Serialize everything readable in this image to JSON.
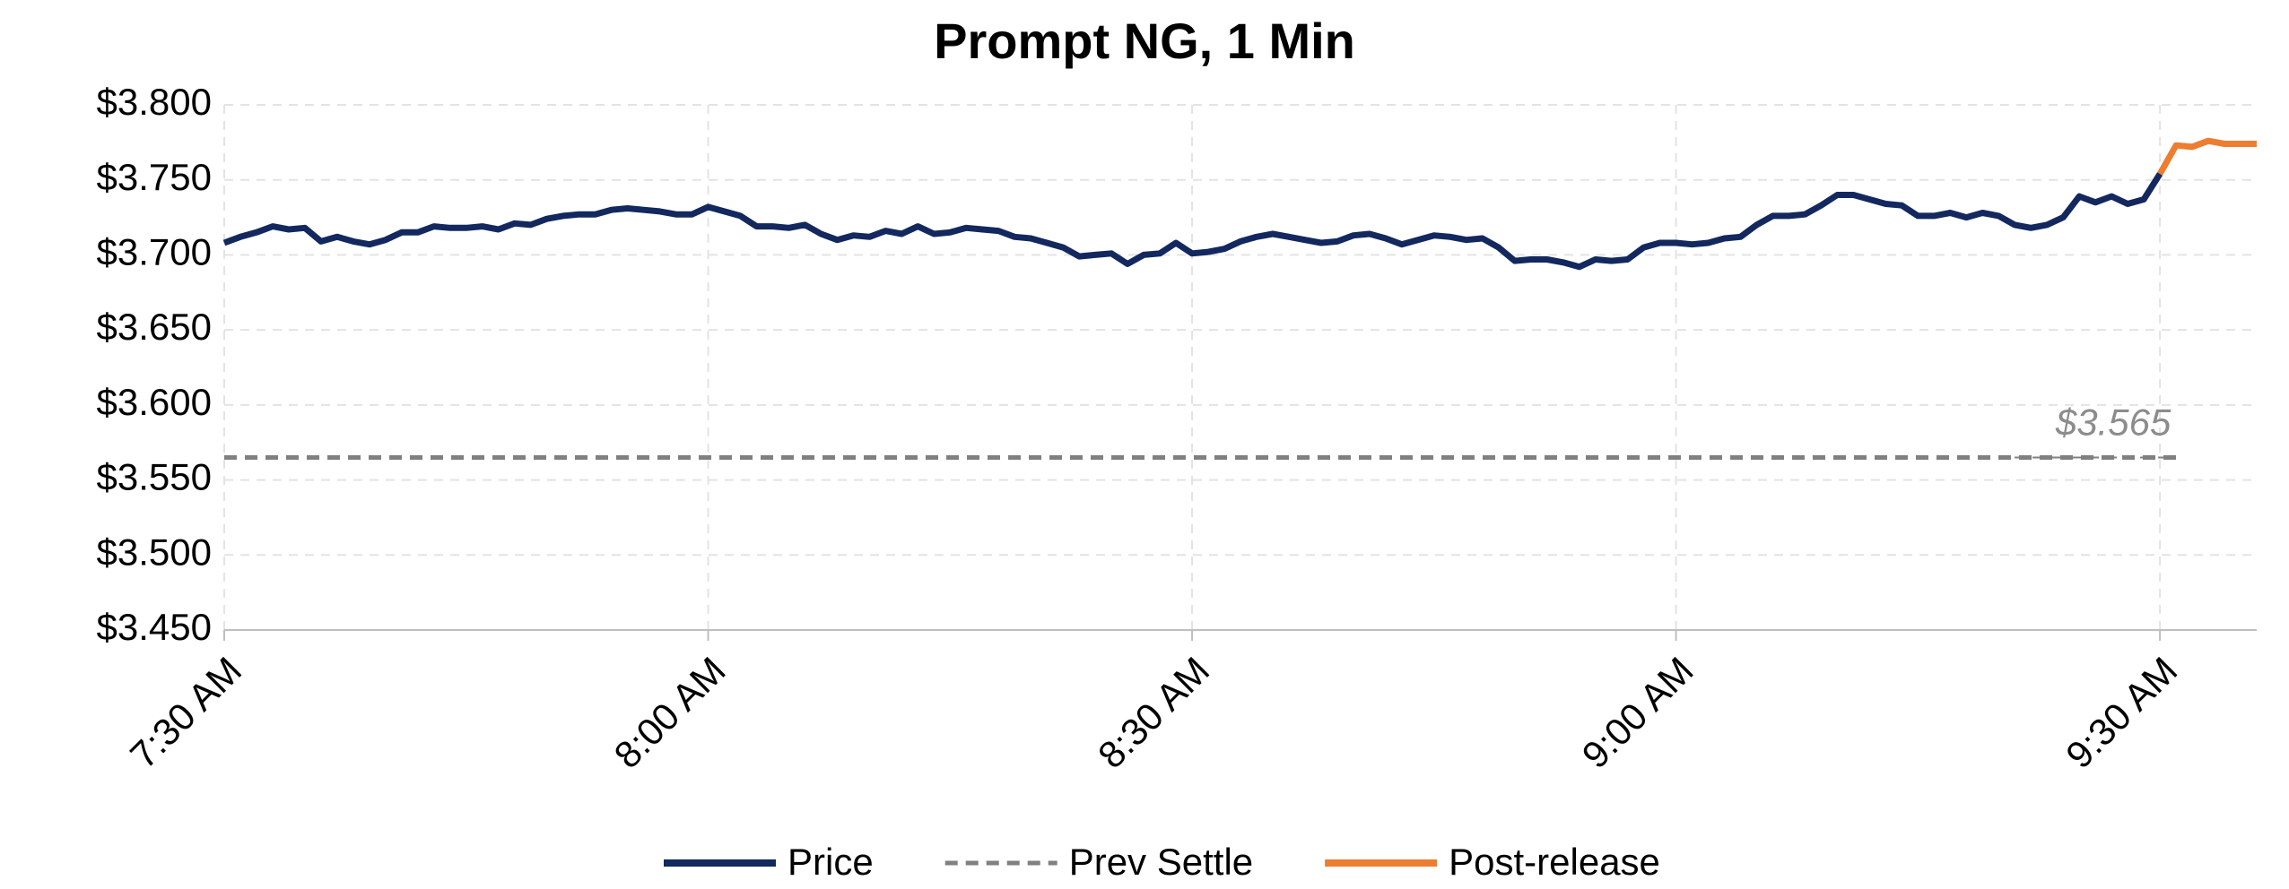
{
  "chart_data": {
    "type": "line",
    "title": "Prompt NG, 1 Min",
    "xlim": [
      0,
      126
    ],
    "xticks": [
      {
        "value": 0,
        "label": "7:30 AM"
      },
      {
        "value": 30,
        "label": "8:00 AM"
      },
      {
        "value": 60,
        "label": "8:30 AM"
      },
      {
        "value": 90,
        "label": "9:00 AM"
      },
      {
        "value": 120,
        "label": "9:30 AM"
      }
    ],
    "ylim": [
      3.45,
      3.8
    ],
    "yticks": [
      {
        "value": 3.45,
        "label": "$3.450"
      },
      {
        "value": 3.5,
        "label": "$3.500"
      },
      {
        "value": 3.55,
        "label": "$3.550"
      },
      {
        "value": 3.6,
        "label": "$3.600"
      },
      {
        "value": 3.65,
        "label": "$3.650"
      },
      {
        "value": 3.7,
        "label": "$3.700"
      },
      {
        "value": 3.75,
        "label": "$3.750"
      },
      {
        "value": 3.8,
        "label": "$3.800"
      }
    ],
    "grid": true,
    "legend": "bottom",
    "series": [
      {
        "name": "Price",
        "color": "#13285e",
        "dash": false,
        "x": [
          0,
          1,
          2,
          3,
          4,
          5,
          6,
          7,
          8,
          9,
          10,
          11,
          12,
          13,
          14,
          15,
          16,
          17,
          18,
          19,
          20,
          21,
          22,
          23,
          24,
          25,
          26,
          27,
          28,
          29,
          30,
          31,
          32,
          33,
          34,
          35,
          36,
          37,
          38,
          39,
          40,
          41,
          42,
          43,
          44,
          45,
          46,
          47,
          48,
          49,
          50,
          51,
          52,
          53,
          54,
          55,
          56,
          57,
          58,
          59,
          60,
          61,
          62,
          63,
          64,
          65,
          66,
          67,
          68,
          69,
          70,
          71,
          72,
          73,
          74,
          75,
          76,
          77,
          78,
          79,
          80,
          81,
          82,
          83,
          84,
          85,
          86,
          87,
          88,
          89,
          90,
          91,
          92,
          93,
          94,
          95,
          96,
          97,
          98,
          99,
          100,
          101,
          102,
          103,
          104,
          105,
          106,
          107,
          108,
          109,
          110,
          111,
          112,
          113,
          114,
          115,
          116,
          117,
          118,
          119,
          120
        ],
        "values": [
          3.708,
          3.712,
          3.715,
          3.719,
          3.717,
          3.718,
          3.709,
          3.712,
          3.709,
          3.707,
          3.71,
          3.715,
          3.715,
          3.719,
          3.718,
          3.718,
          3.719,
          3.717,
          3.721,
          3.72,
          3.724,
          3.726,
          3.727,
          3.727,
          3.73,
          3.731,
          3.73,
          3.729,
          3.727,
          3.727,
          3.732,
          3.729,
          3.726,
          3.719,
          3.719,
          3.718,
          3.72,
          3.714,
          3.71,
          3.713,
          3.712,
          3.716,
          3.714,
          3.719,
          3.714,
          3.715,
          3.718,
          3.717,
          3.716,
          3.712,
          3.711,
          3.708,
          3.705,
          3.699,
          3.7,
          3.701,
          3.694,
          3.7,
          3.701,
          3.708,
          3.701,
          3.702,
          3.704,
          3.709,
          3.712,
          3.714,
          3.712,
          3.71,
          3.708,
          3.709,
          3.713,
          3.714,
          3.711,
          3.707,
          3.71,
          3.713,
          3.712,
          3.71,
          3.711,
          3.705,
          3.696,
          3.697,
          3.697,
          3.695,
          3.692,
          3.697,
          3.696,
          3.697,
          3.705,
          3.708,
          3.708,
          3.707,
          3.708,
          3.711,
          3.712,
          3.72,
          3.726,
          3.726,
          3.727,
          3.733,
          3.74,
          3.74,
          3.737,
          3.734,
          3.733,
          3.726,
          3.726,
          3.728,
          3.725,
          3.728,
          3.726,
          3.72,
          3.718,
          3.72,
          3.725,
          3.739,
          3.735,
          3.739,
          3.734,
          3.737,
          3.754
        ]
      },
      {
        "name": "Prev Settle",
        "color": "#808080",
        "dash": true,
        "x": [
          0,
          121
        ],
        "values": [
          3.565,
          3.565
        ]
      },
      {
        "name": "Post-release",
        "color": "#ed7d31",
        "dash": false,
        "x": [
          120,
          121,
          122,
          123,
          124,
          125,
          126
        ],
        "values": [
          3.754,
          3.773,
          3.772,
          3.776,
          3.774,
          3.774,
          3.774
        ]
      }
    ],
    "annotations": [
      {
        "text": "$3.565",
        "x": 121,
        "y": 3.565
      }
    ]
  }
}
